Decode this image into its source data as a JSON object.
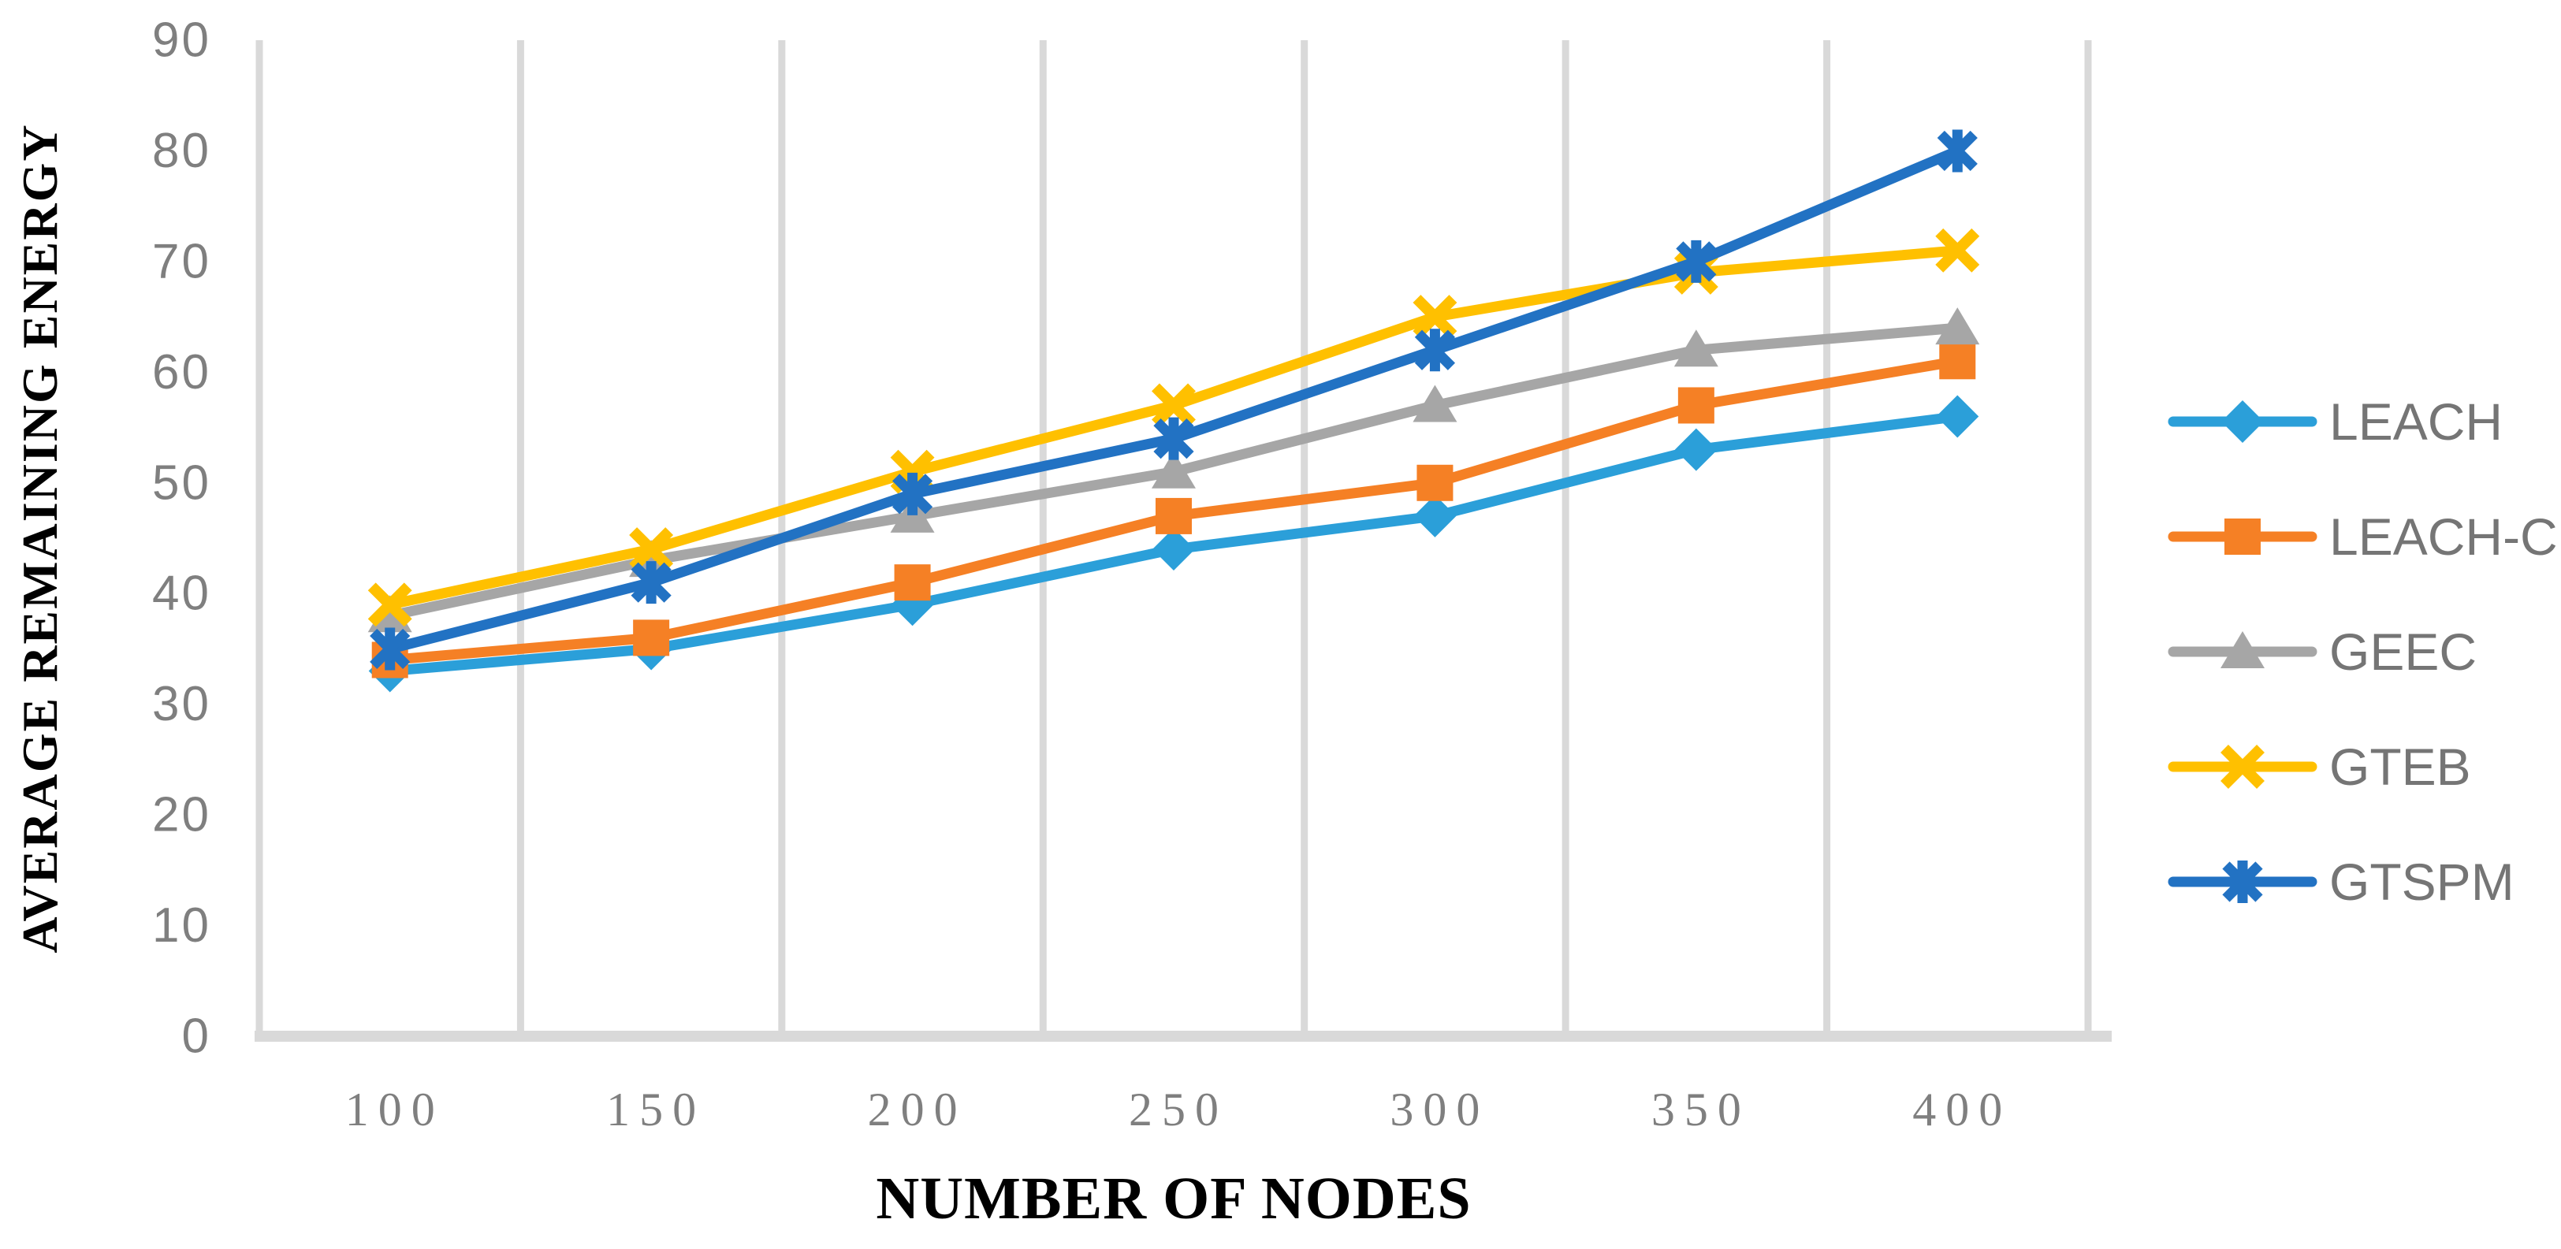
{
  "chart_data": {
    "type": "line",
    "title": "",
    "xlabel": "NUMBER OF NODES",
    "ylabel": "AVERAGE REMAINING ENERGY",
    "categories": [
      100,
      150,
      200,
      250,
      300,
      350,
      400
    ],
    "x_tick_labels": [
      "100",
      "150",
      "200",
      "250",
      "300",
      "350",
      "400"
    ],
    "y_ticks": [
      0,
      10,
      20,
      30,
      40,
      50,
      60,
      70,
      80,
      90
    ],
    "ylim": [
      0,
      90
    ],
    "grid": "vertical-only",
    "legend_position": "right",
    "series": [
      {
        "name": "LEACH",
        "color": "#2B9FD9",
        "marker": "diamond",
        "values": [
          33,
          35,
          39,
          44,
          47,
          53,
          56
        ]
      },
      {
        "name": "LEACH-C",
        "color": "#F58025",
        "marker": "square",
        "values": [
          34,
          36,
          41,
          47,
          50,
          57,
          61
        ]
      },
      {
        "name": "GEEC",
        "color": "#A6A6A6",
        "marker": "triangle",
        "values": [
          38,
          43,
          47,
          51,
          57,
          62,
          64
        ]
      },
      {
        "name": "GTEB",
        "color": "#FFC000",
        "marker": "x",
        "values": [
          39,
          44,
          51,
          57,
          65,
          69,
          71
        ]
      },
      {
        "name": "GTSPM",
        "color": "#2272C3",
        "marker": "asterisk",
        "values": [
          35,
          41,
          49,
          54,
          62,
          70,
          80
        ]
      }
    ],
    "colors": {
      "gridline": "#D9D9D9",
      "axis_line": "#D9D9D9",
      "tick_text": "#7F7F7F",
      "legend_text": "#757575",
      "title_text": "#000000",
      "background": "#FFFFFF"
    }
  }
}
